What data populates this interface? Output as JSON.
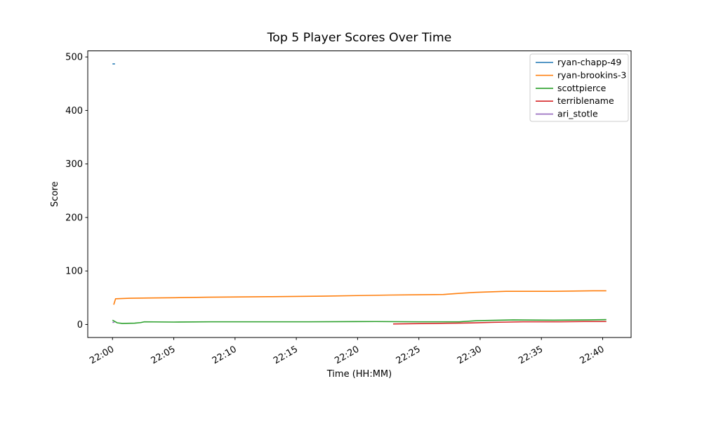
{
  "figure": {
    "background": "#ffffff"
  },
  "chart_data": {
    "type": "line",
    "title": "Top 5 Player Scores Over Time",
    "xlabel": "Time (HH:MM)",
    "ylabel": "Score",
    "grid": false,
    "legend_position": "upper-right",
    "x_base_time": "22:00",
    "x_tick_minutes": [
      0,
      5,
      10,
      15,
      20,
      25,
      30,
      35,
      40
    ],
    "x_tick_labels": [
      "22:00",
      "22:05",
      "22:10",
      "22:15",
      "22:20",
      "22:25",
      "22:30",
      "22:35",
      "22:40"
    ],
    "y_ticks": [
      0,
      100,
      200,
      300,
      400,
      500
    ],
    "xlim_minutes": [
      -2.02,
      42.32
    ],
    "ylim": [
      -24.35,
      511.35
    ],
    "series": [
      {
        "name": "ryan-chapp-49",
        "color": "#1f77b4",
        "points": [
          [
            0.0,
            487
          ],
          [
            0.2,
            487
          ]
        ]
      },
      {
        "name": "ryan-brookins-3",
        "color": "#ff7f0e",
        "points": [
          [
            0.1,
            37
          ],
          [
            0.25,
            48
          ],
          [
            1.4,
            49
          ],
          [
            3,
            49.5
          ],
          [
            5.1,
            50
          ],
          [
            7.8,
            51
          ],
          [
            10.4,
            51.5
          ],
          [
            13,
            52
          ],
          [
            17.2,
            53
          ],
          [
            20,
            54
          ],
          [
            22.6,
            55
          ],
          [
            25,
            55.5
          ],
          [
            27,
            56
          ],
          [
            28.2,
            58
          ],
          [
            29.6,
            60
          ],
          [
            32.1,
            62
          ],
          [
            36,
            62
          ],
          [
            39.2,
            63
          ],
          [
            40.3,
            63
          ]
        ]
      },
      {
        "name": "scottpierce",
        "color": "#2ca02c",
        "points": [
          [
            0,
            8
          ],
          [
            0.4,
            3
          ],
          [
            0.8,
            2
          ],
          [
            1.8,
            2.5
          ],
          [
            2.3,
            3.5
          ],
          [
            2.6,
            5
          ],
          [
            5,
            4.5
          ],
          [
            8,
            5
          ],
          [
            12,
            5
          ],
          [
            16,
            5
          ],
          [
            21.5,
            5.5
          ],
          [
            25,
            5
          ],
          [
            28.3,
            5
          ],
          [
            29.7,
            7
          ],
          [
            32.7,
            8.5
          ],
          [
            36,
            8
          ],
          [
            38.9,
            8.5
          ],
          [
            40.3,
            9
          ]
        ]
      },
      {
        "name": "terriblename",
        "color": "#d62728",
        "points": [
          [
            22.9,
            1
          ],
          [
            24.5,
            1.5
          ],
          [
            26.4,
            2
          ],
          [
            28,
            2.5
          ],
          [
            29.3,
            3
          ],
          [
            31.1,
            4
          ],
          [
            33.5,
            5
          ],
          [
            36.5,
            5
          ],
          [
            38.5,
            5.5
          ],
          [
            40.3,
            5.5
          ]
        ]
      },
      {
        "name": "ari_stotle",
        "color": "#9467bd",
        "points": [
          [
            0,
            4
          ],
          [
            0.15,
            4
          ]
        ]
      }
    ]
  }
}
